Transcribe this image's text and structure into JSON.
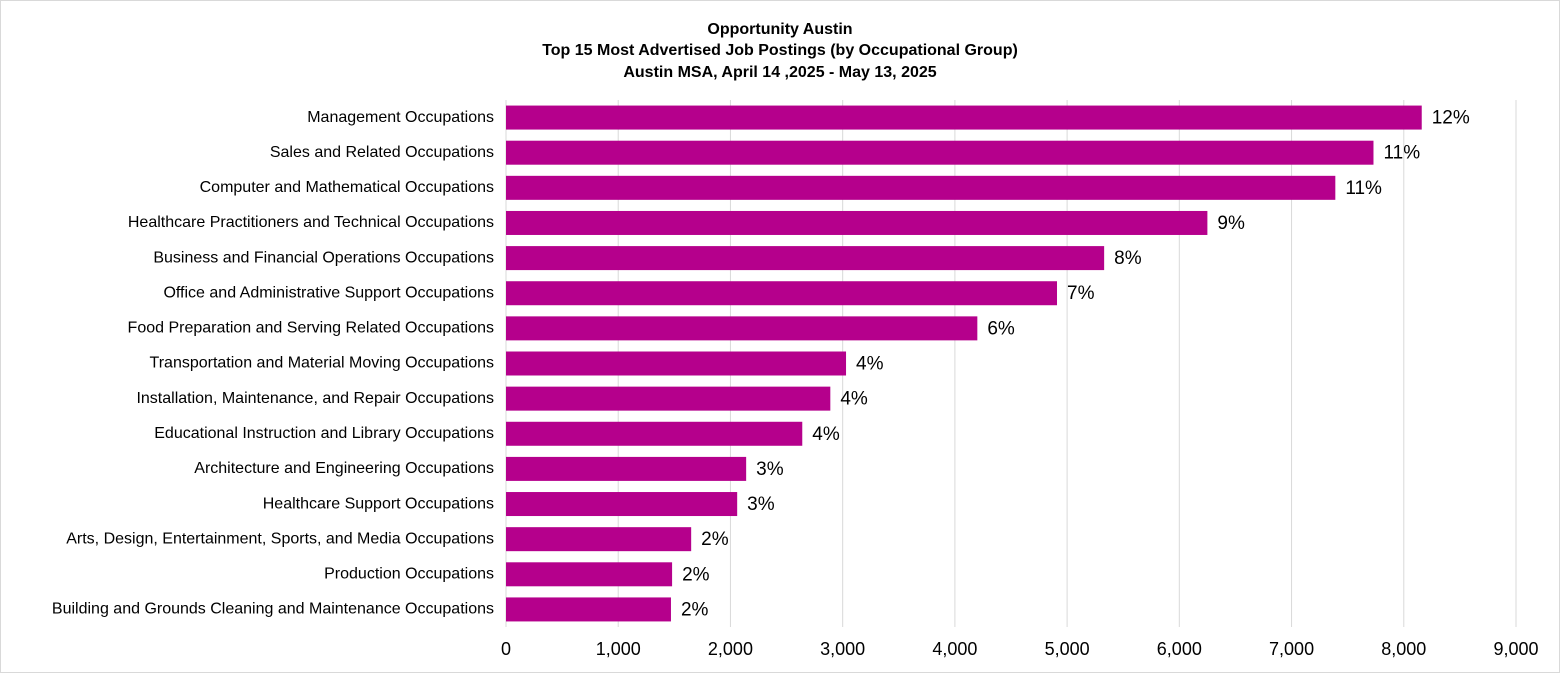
{
  "chart_data": {
    "type": "barh",
    "title": [
      "Opportunity Austin",
      "Top 15 Most Advertised Job Postings (by Occupational Group)",
      "Austin MSA, April 14 ,2025 - May 13, 2025"
    ],
    "categories": [
      "Management Occupations",
      "Sales and Related Occupations",
      "Computer and Mathematical Occupations",
      "Healthcare Practitioners and Technical Occupations",
      "Business and Financial Operations Occupations",
      "Office and Administrative Support Occupations",
      "Food Preparation and Serving Related Occupations",
      "Transportation and Material Moving Occupations",
      "Installation, Maintenance, and Repair Occupations",
      "Educational Instruction and Library Occupations",
      "Architecture and Engineering Occupations",
      "Healthcare Support Occupations",
      "Arts, Design, Entertainment, Sports, and Media Occupations",
      "Production Occupations",
      "Building and Grounds Cleaning and Maintenance Occupations"
    ],
    "values": [
      8160,
      7730,
      7390,
      6250,
      5330,
      4910,
      4200,
      3030,
      2890,
      2640,
      2140,
      2060,
      1650,
      1480,
      1470
    ],
    "share_labels": [
      "12%",
      "11%",
      "11%",
      "9%",
      "8%",
      "7%",
      "6%",
      "4%",
      "4%",
      "4%",
      "3%",
      "3%",
      "2%",
      "2%",
      "2%"
    ],
    "color": "#b5008c",
    "xlim": [
      0,
      9000
    ],
    "xticks": [
      0,
      {
        "value": 1000,
        "label": "1,000"
      },
      {
        "value": 2000,
        "label": "2,000"
      },
      {
        "value": 3000,
        "label": "3,000"
      },
      {
        "value": 4000,
        "label": "4,000"
      },
      {
        "value": 5000,
        "label": "5,000"
      },
      {
        "value": 6000,
        "label": "6,000"
      },
      {
        "value": 7000,
        "label": "7,000"
      },
      {
        "value": 8000,
        "label": "8,000"
      },
      {
        "value": 9000,
        "label": "9,000"
      }
    ],
    "grid": true
  }
}
